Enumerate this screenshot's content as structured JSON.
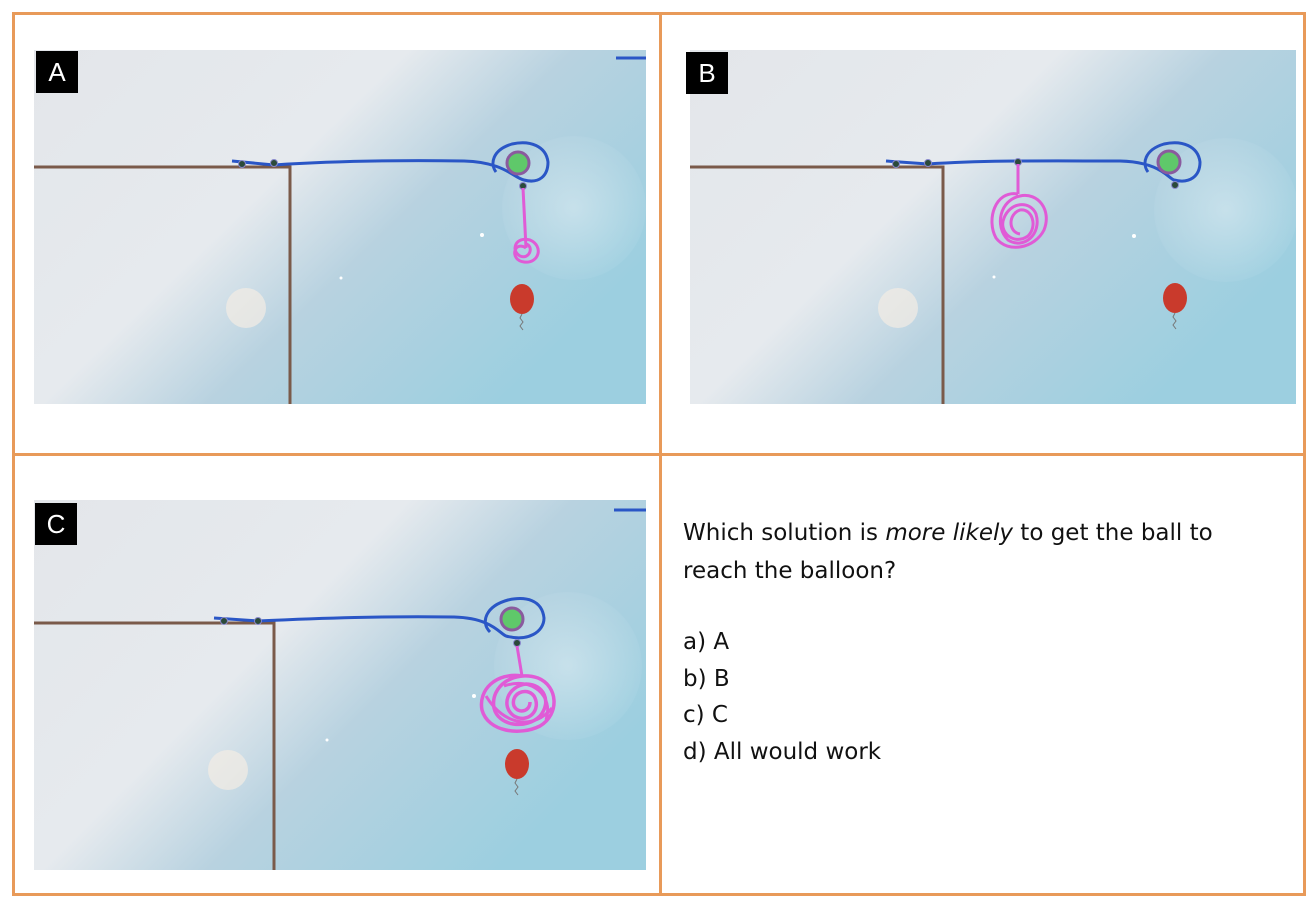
{
  "panels": [
    {
      "label": "A"
    },
    {
      "label": "B"
    },
    {
      "label": "C"
    }
  ],
  "colors": {
    "border": "#e89a59",
    "ball": "#5fc86a",
    "ball_ring": "#8a5a9e",
    "blue_line": "#2a56c6",
    "pink_drawing": "#e05bd6",
    "wall": "#7a5a4a",
    "balloon": "#c93a2c"
  },
  "question": {
    "prefix": "Which solution is ",
    "emphasis": "more likely",
    "suffix": " to get the ball to reach the balloon?",
    "options": [
      "a) A",
      "b) B",
      "c) C",
      "d) All would work"
    ]
  }
}
